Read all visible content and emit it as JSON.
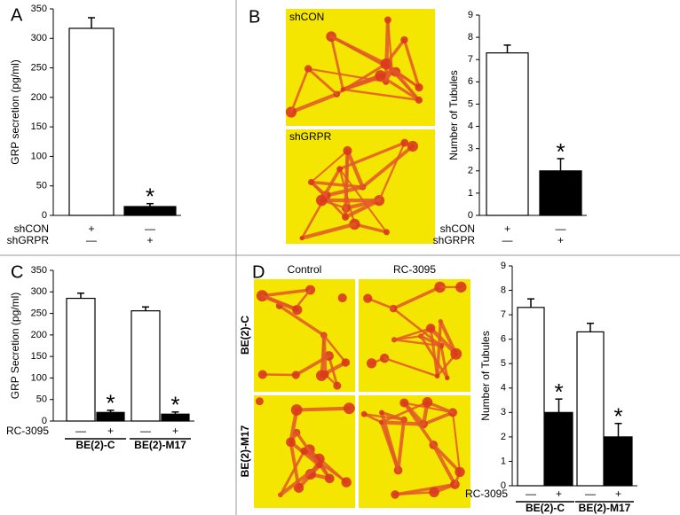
{
  "chart_data": [
    {
      "type": "bar",
      "panel": "A",
      "ylabel": "GRP secretion (pg/ml)",
      "ylim": [
        0,
        350
      ],
      "yticks": [
        0,
        50,
        100,
        150,
        200,
        250,
        300,
        350
      ],
      "values": [
        317,
        15
      ],
      "errors": [
        18,
        5
      ],
      "colors": [
        "#ffffff",
        "#000000"
      ],
      "annotations": [
        {
          "index": 1,
          "text": "*"
        }
      ],
      "conditions": [
        {
          "label": "shCON",
          "signs": [
            "+",
            "—"
          ]
        },
        {
          "label": "shGRPR",
          "signs": [
            "—",
            "+"
          ]
        }
      ]
    },
    {
      "type": "bar",
      "panel": "B",
      "ylabel": "Number of Tubules",
      "ylim": [
        0,
        9
      ],
      "yticks": [
        0,
        1,
        2,
        3,
        4,
        5,
        6,
        7,
        8,
        9
      ],
      "values": [
        7.3,
        2.0
      ],
      "errors": [
        0.35,
        0.55
      ],
      "colors": [
        "#ffffff",
        "#000000"
      ],
      "annotations": [
        {
          "index": 1,
          "text": "*"
        }
      ],
      "conditions": [
        {
          "label": "shCON",
          "signs": [
            "+",
            "—"
          ]
        },
        {
          "label": "shGRPR",
          "signs": [
            "—",
            "+"
          ]
        }
      ]
    },
    {
      "type": "bar",
      "panel": "C",
      "ylabel": "GRP Secretion (pg/ml)",
      "ylim": [
        0,
        350
      ],
      "yticks": [
        0,
        50,
        100,
        150,
        200,
        250,
        300,
        350
      ],
      "values": [
        285,
        20,
        256,
        16
      ],
      "errors": [
        12,
        5,
        9,
        5
      ],
      "colors": [
        "#ffffff",
        "#000000",
        "#ffffff",
        "#000000"
      ],
      "annotations": [
        {
          "index": 1,
          "text": "*"
        },
        {
          "index": 3,
          "text": "*"
        }
      ],
      "conditions": [
        {
          "label": "RC-3095",
          "signs": [
            "—",
            "+",
            "—",
            "+"
          ]
        }
      ],
      "groups": [
        "BE(2)-C",
        "BE(2)-M17"
      ]
    },
    {
      "type": "bar",
      "panel": "D",
      "ylabel": "Number of Tubules",
      "ylim": [
        0,
        9
      ],
      "yticks": [
        0,
        1,
        2,
        3,
        4,
        5,
        6,
        7,
        8,
        9
      ],
      "values": [
        7.3,
        3.0,
        6.3,
        2.0
      ],
      "errors": [
        0.35,
        0.55,
        0.35,
        0.55
      ],
      "colors": [
        "#ffffff",
        "#000000",
        "#ffffff",
        "#000000"
      ],
      "annotations": [
        {
          "index": 1,
          "text": "*"
        },
        {
          "index": 3,
          "text": "*"
        }
      ],
      "conditions": [
        {
          "label": "RC-3095",
          "signs": [
            "—",
            "+",
            "—",
            "+"
          ]
        }
      ],
      "groups": [
        "BE(2)-C",
        "BE(2)-M17"
      ]
    }
  ],
  "images": [
    {
      "labels": [
        "shCON",
        "shGRPR"
      ]
    },
    {
      "column_labels": [
        "Control",
        "RC-3095"
      ],
      "row_labels": [
        "BE(2)-C",
        "BE(2)-M17"
      ]
    }
  ]
}
